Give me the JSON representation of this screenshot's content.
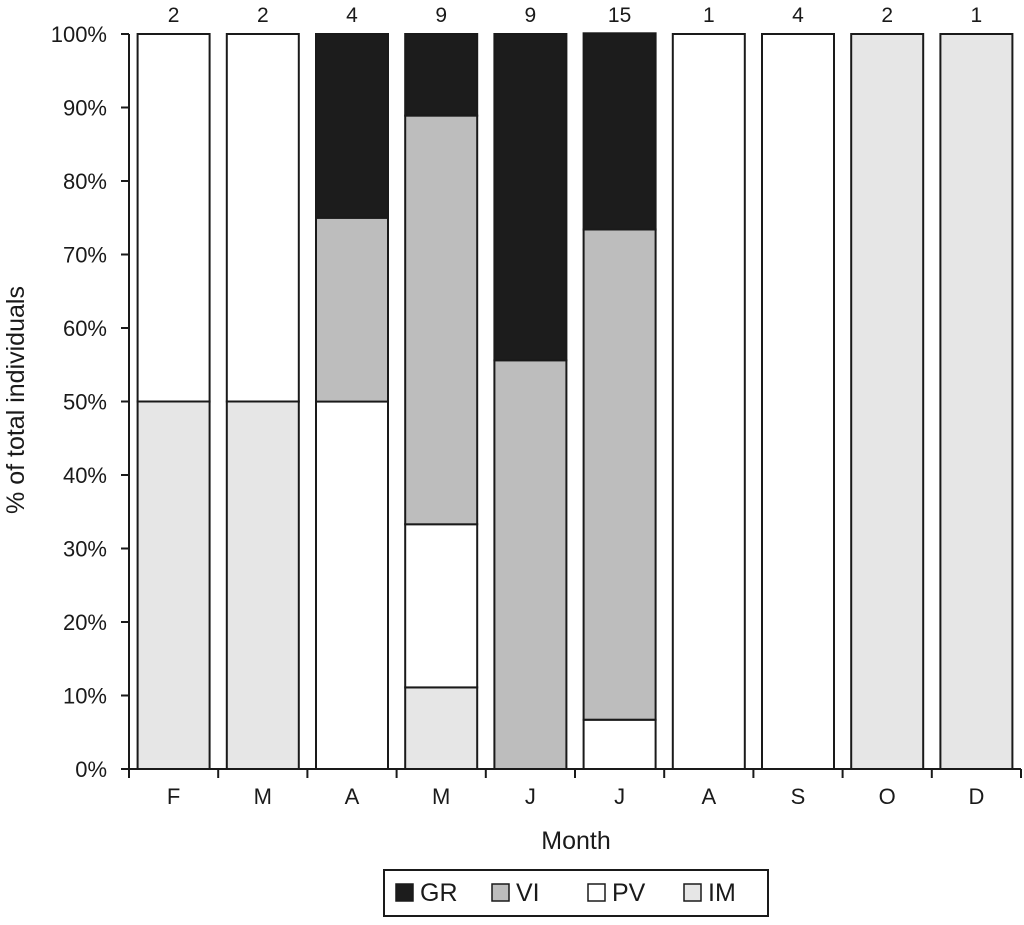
{
  "chart_data": {
    "type": "bar",
    "stacked": true,
    "normalized_percent": true,
    "title": "",
    "xlabel": "Month",
    "ylabel": "% of total individuals",
    "ylim": [
      0,
      100
    ],
    "yticks": [
      "0%",
      "10%",
      "20%",
      "30%",
      "40%",
      "50%",
      "60%",
      "70%",
      "80%",
      "90%",
      "100%"
    ],
    "categories": [
      "F",
      "M",
      "A",
      "M",
      "J",
      "J",
      "A",
      "S",
      "O",
      "D"
    ],
    "counts": [
      "2",
      "2",
      "4",
      "9",
      "9",
      "15",
      "1",
      "4",
      "2",
      "1"
    ],
    "series": [
      {
        "name": "IM",
        "color": "#e6e6e6",
        "values": [
          50,
          50,
          0,
          11.1,
          0,
          0,
          0,
          0,
          100,
          100
        ]
      },
      {
        "name": "PV",
        "color": "#ffffff",
        "values": [
          50,
          50,
          50,
          22.2,
          0,
          6.7,
          100,
          100,
          0,
          0
        ]
      },
      {
        "name": "VI",
        "color": "#bdbdbd",
        "values": [
          0,
          0,
          25,
          55.6,
          55.6,
          66.7,
          0,
          0,
          0,
          0
        ]
      },
      {
        "name": "GR",
        "color": "#1c1c1c",
        "values": [
          0,
          0,
          25,
          11.1,
          44.4,
          26.7,
          0,
          0,
          0,
          0
        ]
      }
    ],
    "legend_order": [
      "GR",
      "VI",
      "PV",
      "IM"
    ],
    "legend_position": "bottom-center",
    "grid": false
  }
}
